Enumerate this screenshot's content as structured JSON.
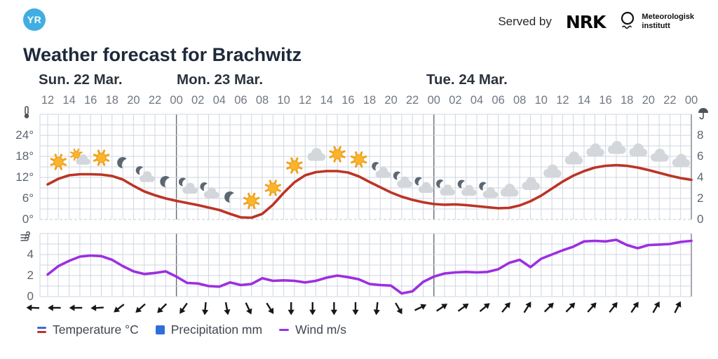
{
  "header": {
    "logo_text": "YR",
    "served_by": "Served by",
    "nrk_logo_text": "NRK",
    "met_logo_line1": "Meteorologisk",
    "met_logo_line2": "institutt"
  },
  "title": "Weather forecast for Brachwitz",
  "days": [
    {
      "label": "Sun. 22 Mar."
    },
    {
      "label": "Mon. 23 Mar."
    },
    {
      "label": "Tue. 24 Mar."
    }
  ],
  "hour_labels": [
    "12",
    "14",
    "16",
    "18",
    "20",
    "22",
    "00",
    "02",
    "04",
    "06",
    "08",
    "10",
    "12",
    "14",
    "16",
    "18",
    "20",
    "22",
    "00",
    "02",
    "04",
    "06",
    "08",
    "10",
    "12",
    "14",
    "16",
    "18",
    "20",
    "22",
    "00"
  ],
  "axes": {
    "temperature": {
      "icon": "thermometer-icon",
      "ticks": [
        "24°",
        "18°",
        "12°",
        "6°",
        "0°"
      ]
    },
    "precipitation": {
      "icon": "umbrella-icon",
      "ticks": [
        "8",
        "6",
        "4",
        "2",
        "0"
      ]
    },
    "wind": {
      "icon": "wind-icon",
      "ticks": [
        "4",
        "2",
        "0"
      ]
    }
  },
  "legend": {
    "items": [
      {
        "id": "temperature",
        "label": "Temperature °C",
        "colors": [
          "#3d6ad1",
          "#bc3425"
        ]
      },
      {
        "id": "precipitation",
        "label": "Precipitation mm",
        "colors": [
          "#2f6fdb"
        ]
      },
      {
        "id": "wind",
        "label": "Wind m/s",
        "colors": [
          "#9d2fe0"
        ]
      }
    ]
  },
  "chart_data": {
    "type": "line",
    "title": "Weather forecast for Brachwitz",
    "x_start": "Sun 22 Mar 12:00",
    "x_end": "Wed 25 Mar 00:00",
    "x_step_hours": 1,
    "day_labels": [
      "Sun. 22 Mar.",
      "Mon. 23 Mar.",
      "Tue. 24 Mar."
    ],
    "grid": true,
    "legend_position": "bottom",
    "series": [
      {
        "name": "Temperature °C",
        "unit": "°C",
        "color": "#bc3425",
        "axis": "left-upper",
        "axis_ticks": [
          0,
          6,
          12,
          18,
          24
        ],
        "y_range": [
          0,
          30
        ],
        "values": [
          10.0,
          11.6,
          12.6,
          12.9,
          12.9,
          12.8,
          12.4,
          11.4,
          9.6,
          8.0,
          6.9,
          6.0,
          5.3,
          4.7,
          4.1,
          3.4,
          2.7,
          1.6,
          0.6,
          0.5,
          1.6,
          4.2,
          7.6,
          10.6,
          12.6,
          13.5,
          13.8,
          13.8,
          13.4,
          12.3,
          10.7,
          9.2,
          7.7,
          6.5,
          5.6,
          4.9,
          4.4,
          4.2,
          4.3,
          4.1,
          3.8,
          3.5,
          3.2,
          3.3,
          4.0,
          5.2,
          6.8,
          8.8,
          10.8,
          12.5,
          13.8,
          14.8,
          15.3,
          15.5,
          15.3,
          14.8,
          14.1,
          13.3,
          12.5,
          11.8,
          11.3
        ]
      },
      {
        "name": "Wind m/s",
        "unit": "m/s",
        "color": "#9d2fe0",
        "axis": "left-lower",
        "axis_ticks": [
          0,
          2,
          4
        ],
        "y_range": [
          0,
          6
        ],
        "values": [
          2.1,
          2.9,
          3.4,
          3.8,
          3.9,
          3.85,
          3.5,
          2.9,
          2.4,
          2.15,
          2.25,
          2.4,
          1.9,
          1.3,
          1.25,
          1.0,
          0.95,
          1.35,
          1.1,
          1.2,
          1.75,
          1.5,
          1.55,
          1.5,
          1.35,
          1.5,
          1.8,
          2.0,
          1.85,
          1.65,
          1.2,
          1.1,
          1.05,
          0.3,
          0.5,
          1.4,
          1.9,
          2.2,
          2.3,
          2.35,
          2.3,
          2.35,
          2.6,
          3.2,
          3.5,
          2.8,
          3.6,
          4.0,
          4.4,
          4.75,
          5.25,
          5.3,
          5.25,
          5.4,
          4.9,
          4.6,
          4.9,
          4.95,
          5.0,
          5.2,
          5.3
        ]
      },
      {
        "name": "Precipitation mm",
        "unit": "mm",
        "color": "#2f6fdb",
        "axis": "right",
        "axis_ticks": [
          0,
          2,
          4,
          6,
          8
        ],
        "y_range": [
          0,
          10
        ],
        "values": []
      }
    ],
    "weather_symbols": [
      "sun",
      "sun-cloud",
      "sun",
      "moon",
      "moon-cloud",
      "moon",
      "moon-cloud",
      "moon-cloud",
      "moon",
      "sun",
      "sun",
      "sun",
      "cloud",
      "sun",
      "sun",
      "moon-cloud",
      "moon-cloud",
      "moon-cloud",
      "moon-cloud",
      "moon-cloud",
      "moon-cloud",
      "cloud",
      "cloud",
      "cloud",
      "cloud",
      "cloud",
      "cloud",
      "cloud",
      "cloud",
      "cloud"
    ],
    "wind_directions_deg": [
      272,
      270,
      270,
      267,
      232,
      228,
      225,
      215,
      185,
      170,
      155,
      148,
      180,
      180,
      180,
      180,
      186,
      150,
      64,
      56,
      54,
      50,
      40,
      32,
      45,
      44,
      42,
      38,
      34,
      30,
      27
    ]
  }
}
